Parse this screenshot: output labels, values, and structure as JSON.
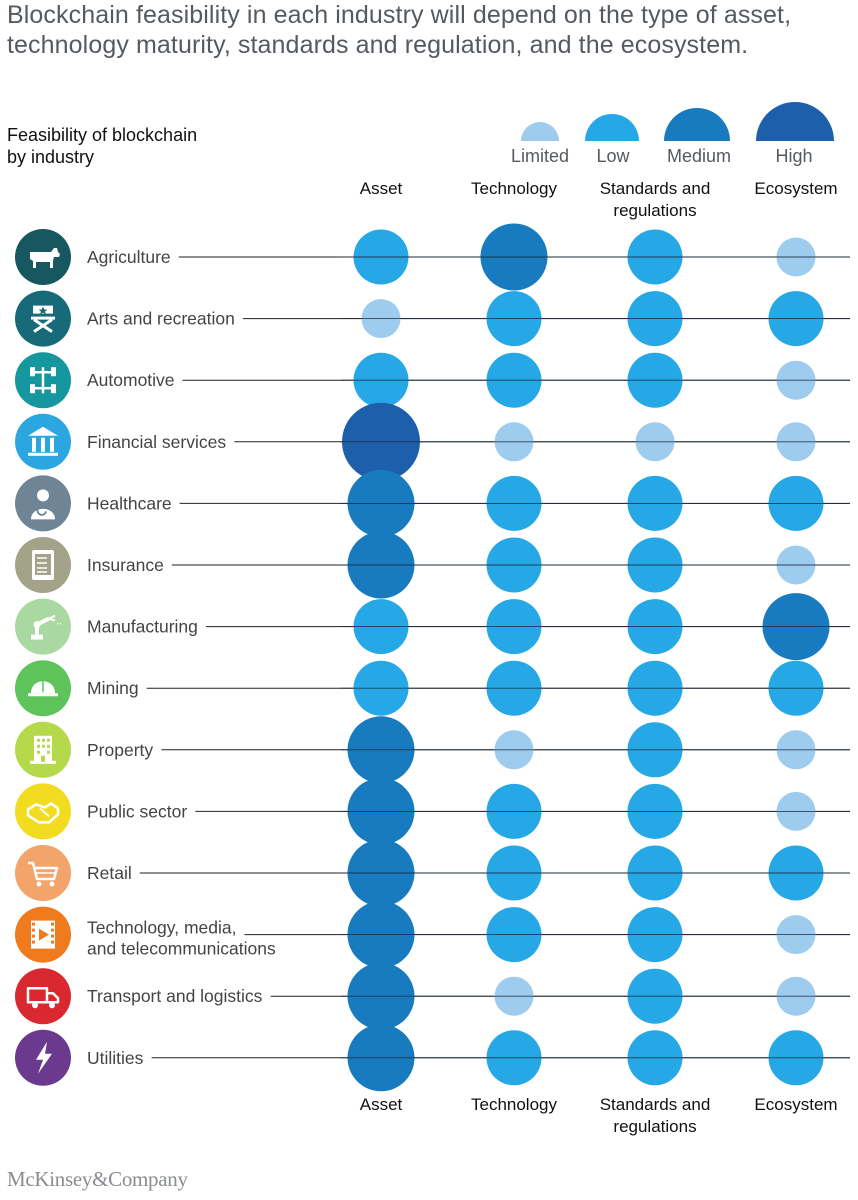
{
  "title": "Blockchain feasibility in each industry will depend on the type of asset, technology maturity, standards and regulation, and the ecosystem.",
  "chart_data": {
    "type": "bubble-matrix",
    "subtitle": "Feasibility of blockchain by industry",
    "levels": [
      "Limited",
      "Low",
      "Medium",
      "High"
    ],
    "level_colors": [
      "#9dccee",
      "#27a8e6",
      "#187bbf",
      "#1e5fab"
    ],
    "columns": [
      {
        "top": "Asset",
        "bottom": "Asset"
      },
      {
        "top": "Technology",
        "bottom": "Technology"
      },
      {
        "top": "Standards and|regulations",
        "bottom": "Standards and|regulations"
      },
      {
        "top": "Ecosystem",
        "bottom": "Ecosystem"
      }
    ],
    "rows": [
      {
        "industry": "Agriculture",
        "icon": "cow-icon",
        "icon_color": "#17575f",
        "values": [
          "Low",
          "Medium",
          "Low",
          "Limited"
        ]
      },
      {
        "industry": "Arts and recreation",
        "icon": "director-chair-icon",
        "icon_color": "#176b78",
        "values": [
          "Limited",
          "Low",
          "Low",
          "Low"
        ]
      },
      {
        "industry": "Automotive",
        "icon": "car-chassis-icon",
        "icon_color": "#16969e",
        "values": [
          "Low",
          "Low",
          "Low",
          "Limited"
        ]
      },
      {
        "industry": "Financial services",
        "icon": "bank-icon",
        "icon_color": "#2ca6e0",
        "values": [
          "High",
          "Limited",
          "Limited",
          "Limited"
        ]
      },
      {
        "industry": "Healthcare",
        "icon": "doctor-icon",
        "icon_color": "#6f8596",
        "values": [
          "Medium",
          "Low",
          "Low",
          "Low"
        ]
      },
      {
        "industry": "Insurance",
        "icon": "tablet-checklist-icon",
        "icon_color": "#a3a38a",
        "values": [
          "Medium",
          "Low",
          "Low",
          "Limited"
        ]
      },
      {
        "industry": "Manufacturing",
        "icon": "robot-arm-icon",
        "icon_color": "#a9d8a0",
        "values": [
          "Low",
          "Low",
          "Low",
          "Medium"
        ]
      },
      {
        "industry": "Mining",
        "icon": "hard-hat-icon",
        "icon_color": "#5ec35a",
        "values": [
          "Low",
          "Low",
          "Low",
          "Low"
        ]
      },
      {
        "industry": "Property",
        "icon": "building-icon",
        "icon_color": "#b4d94a",
        "values": [
          "Medium",
          "Limited",
          "Low",
          "Limited"
        ]
      },
      {
        "industry": "Public sector",
        "icon": "handshake-icon",
        "icon_color": "#f2dc20",
        "values": [
          "Medium",
          "Low",
          "Low",
          "Limited"
        ]
      },
      {
        "industry": "Retail",
        "icon": "shopping-cart-icon",
        "icon_color": "#f2a46b",
        "values": [
          "Medium",
          "Low",
          "Low",
          "Low"
        ]
      },
      {
        "industry": "Technology, media,|and telecommunications",
        "icon": "film-play-icon",
        "icon_color": "#f07a1e",
        "values": [
          "Medium",
          "Low",
          "Low",
          "Limited"
        ]
      },
      {
        "industry": "Transport and logistics",
        "icon": "truck-icon",
        "icon_color": "#d9282f",
        "values": [
          "Medium",
          "Limited",
          "Low",
          "Limited"
        ]
      },
      {
        "industry": "Utilities",
        "icon": "lightning-icon",
        "icon_color": "#6b3a8e",
        "values": [
          "Medium",
          "Low",
          "Low",
          "Low"
        ]
      }
    ]
  },
  "footer": {
    "brand": "McKinsey&Company"
  }
}
